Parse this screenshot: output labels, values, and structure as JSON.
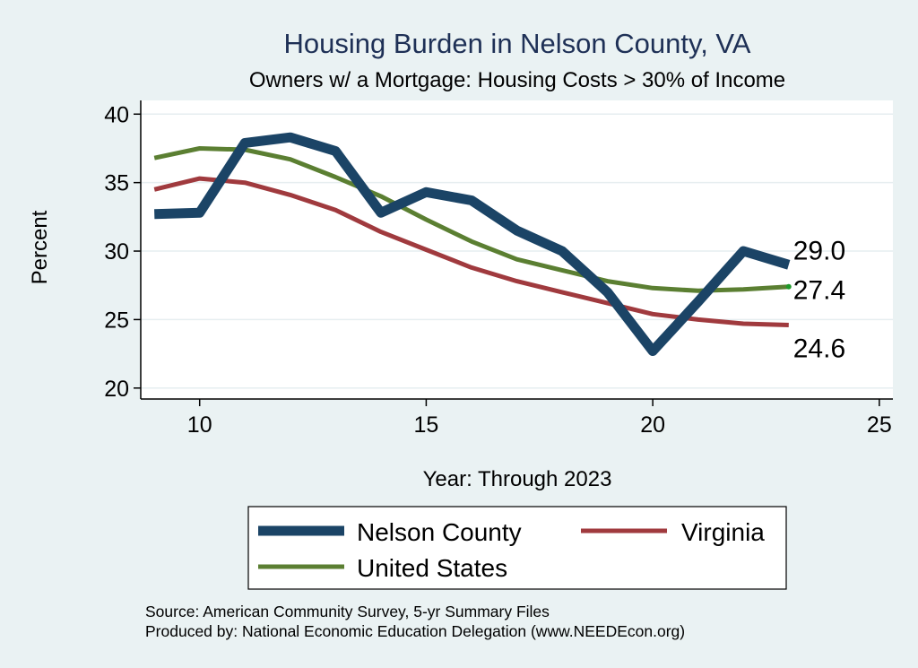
{
  "colors": {
    "background": "#eaf2f3",
    "plot_background": "#ffffff",
    "title": "#1e3056",
    "text": "#000000",
    "grid": "#e6eef0",
    "nelson": "#1b4466",
    "virginia": "#a03a3e",
    "us": "#5b7f32"
  },
  "chart_data": {
    "type": "line",
    "title": "Housing Burden in Nelson County, VA",
    "subtitle": "Owners w/ a Mortgage: Housing Costs > 30% of Income",
    "xlabel": "Year: Through 2023",
    "ylabel": "Percent",
    "xlim": [
      8.7,
      25.3
    ],
    "ylim": [
      19.2,
      41
    ],
    "xticks": [
      10,
      15,
      20,
      25
    ],
    "yticks": [
      20,
      25,
      30,
      35,
      40
    ],
    "grid": true,
    "legend_position": "bottom",
    "series": [
      {
        "name": "Nelson County",
        "color_key": "nelson",
        "stroke": 11,
        "x": [
          9,
          10,
          11,
          12,
          13,
          14,
          15,
          16,
          17,
          18,
          19,
          20,
          21,
          22,
          23
        ],
        "y": [
          32.7,
          32.8,
          37.9,
          38.3,
          37.3,
          32.8,
          34.3,
          33.7,
          31.5,
          30.0,
          27.0,
          22.7,
          26.3,
          30.0,
          29.0
        ],
        "end_label": "29.0"
      },
      {
        "name": "Virginia",
        "color_key": "virginia",
        "stroke": 5,
        "x": [
          9,
          10,
          11,
          12,
          13,
          14,
          15,
          16,
          17,
          18,
          19,
          20,
          21,
          22,
          23
        ],
        "y": [
          34.5,
          35.3,
          35.0,
          34.1,
          33.0,
          31.4,
          30.1,
          28.8,
          27.8,
          27.0,
          26.2,
          25.4,
          25.0,
          24.7,
          24.6
        ],
        "end_label": "24.6"
      },
      {
        "name": "United States",
        "color_key": "us",
        "stroke": 5,
        "x": [
          9,
          10,
          11,
          12,
          13,
          14,
          15,
          16,
          17,
          18,
          19,
          20,
          21,
          22,
          23
        ],
        "y": [
          36.8,
          37.5,
          37.4,
          36.7,
          35.4,
          34.0,
          32.3,
          30.7,
          29.4,
          28.6,
          27.8,
          27.3,
          27.1,
          27.2,
          27.4
        ],
        "end_label": "27.4"
      }
    ]
  },
  "source": {
    "line1": "Source: American Community Survey, 5-yr Summary Files",
    "line2": "Produced by: National Economic Education Delegation (www.NEEDEcon.org)"
  }
}
